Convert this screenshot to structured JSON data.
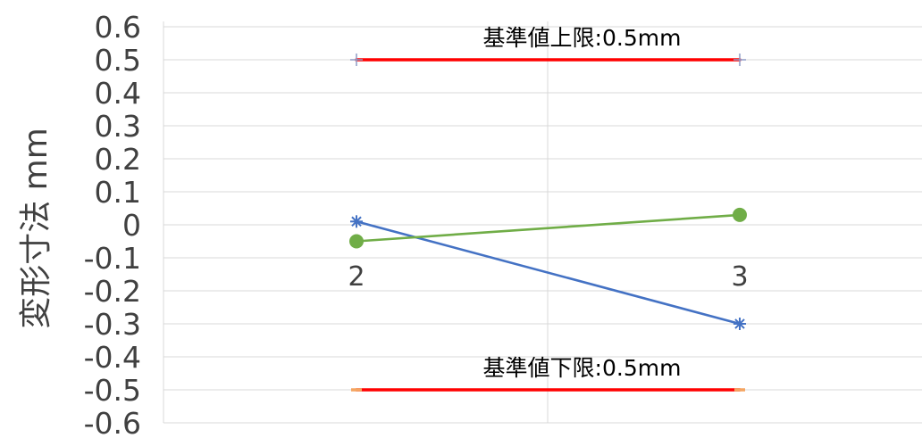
{
  "chart_data": {
    "type": "line",
    "title": "",
    "xlabel": "",
    "ylabel": "変形寸法 mm",
    "ylim": [
      -0.6,
      0.6
    ],
    "yticks": [
      "0.6",
      "0.5",
      "0.4",
      "0.3",
      "0.2",
      "0.1",
      "0",
      "-0.1",
      "-0.2",
      "-0.3",
      "-0.4",
      "-0.5",
      "-0.6"
    ],
    "ytick_values": [
      0.6,
      0.5,
      0.4,
      0.3,
      0.2,
      0.1,
      0,
      -0.1,
      -0.2,
      -0.3,
      -0.4,
      -0.5,
      -0.6
    ],
    "categories": [
      "2",
      "3"
    ],
    "grid": true,
    "series": [
      {
        "marker": "star",
        "color": "#4472c4",
        "values": [
          0.01,
          -0.3
        ]
      },
      {
        "marker": "circle",
        "color": "#70ad47",
        "values": [
          -0.05,
          0.03
        ]
      },
      {
        "marker": "plus",
        "color": "#ff0000",
        "marker_color": "#8e9bc6",
        "values": [
          0.5,
          0.5
        ]
      },
      {
        "marker": "dash",
        "color": "#ff0000",
        "marker_color": "#f4a460",
        "values": [
          -0.5,
          -0.5
        ]
      }
    ],
    "annotations": [
      {
        "text": "基準値上限:0.5mm",
        "category": 0.5,
        "y": 0.5
      },
      {
        "text": "基準値下限:0.5mm",
        "category": 0.5,
        "y": -0.5
      }
    ]
  }
}
